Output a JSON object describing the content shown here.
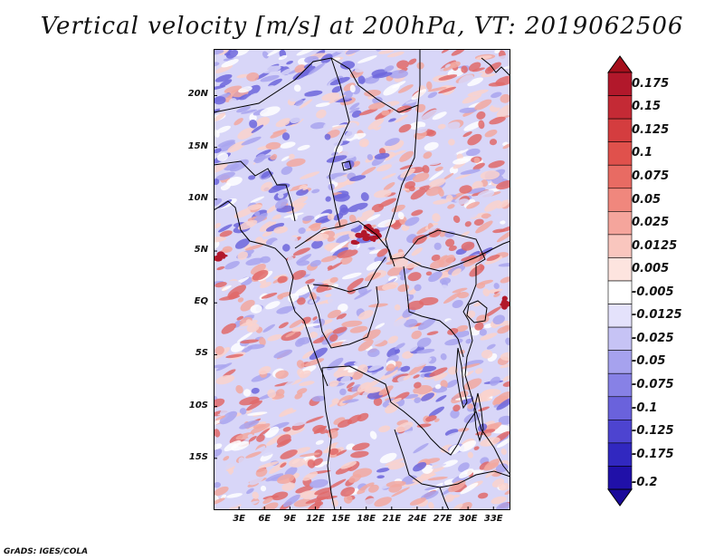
{
  "title": "Vertical velocity [m/s] at 200hPa, VT: 2019062506",
  "credit": "GrADS: IGES/COLA",
  "map": {
    "lon_range": [
      0,
      35
    ],
    "lat_range": [
      -20,
      24.5
    ],
    "lat_ticks": [
      {
        "value": 20,
        "label": "20N"
      },
      {
        "value": 15,
        "label": "15N"
      },
      {
        "value": 10,
        "label": "10N"
      },
      {
        "value": 5,
        "label": "5N"
      },
      {
        "value": 0,
        "label": "EQ"
      },
      {
        "value": -5,
        "label": "5S"
      },
      {
        "value": -10,
        "label": "10S"
      },
      {
        "value": -15,
        "label": "15S"
      }
    ],
    "lon_ticks": [
      {
        "value": 3,
        "label": "3E"
      },
      {
        "value": 6,
        "label": "6E"
      },
      {
        "value": 9,
        "label": "9E"
      },
      {
        "value": 12,
        "label": "12E"
      },
      {
        "value": 15,
        "label": "15E"
      },
      {
        "value": 18,
        "label": "18E"
      },
      {
        "value": 21,
        "label": "21E"
      },
      {
        "value": 24,
        "label": "24E"
      },
      {
        "value": 27,
        "label": "27E"
      },
      {
        "value": 30,
        "label": "30E"
      },
      {
        "value": 33,
        "label": "33E"
      }
    ]
  },
  "colorbar": {
    "levels": [
      {
        "label": "0.175",
        "color": "#b2182b"
      },
      {
        "label": "0.15",
        "color": "#c42a35"
      },
      {
        "label": "0.125",
        "color": "#d43d3f"
      },
      {
        "label": "0.1",
        "color": "#e0514c"
      },
      {
        "label": "0.075",
        "color": "#e86b63"
      },
      {
        "label": "0.05",
        "color": "#f0877d"
      },
      {
        "label": "0.025",
        "color": "#f5a59c"
      },
      {
        "label": "0.0125",
        "color": "#f9c6be"
      },
      {
        "label": "0.005",
        "color": "#fde4df"
      },
      {
        "label": "-0.005",
        "color": "#ffffff"
      },
      {
        "label": "-0.0125",
        "color": "#e4e2fb"
      },
      {
        "label": "-0.025",
        "color": "#c6c3f5"
      },
      {
        "label": "-0.05",
        "color": "#a6a2ee"
      },
      {
        "label": "-0.075",
        "color": "#8781e6"
      },
      {
        "label": "-0.1",
        "color": "#6a62dc"
      },
      {
        "label": "-0.125",
        "color": "#4d44d0"
      },
      {
        "label": "-0.175",
        "color": "#3128c0"
      },
      {
        "label": "-0.2",
        "color": "#2010a8"
      }
    ],
    "top_cap_color": "#a50f1c",
    "bottom_cap_color": "#1a0a9a"
  },
  "field_colors": {
    "strong_down": "#e06a6a",
    "down": "#f2a8a0",
    "weak_down": "#fad2cc",
    "neutral": "#ffffff",
    "weak_up": "#d8d6f8",
    "up": "#a9a4ee",
    "strong_up": "#6d66dc",
    "extreme_down": "#b2182b"
  }
}
